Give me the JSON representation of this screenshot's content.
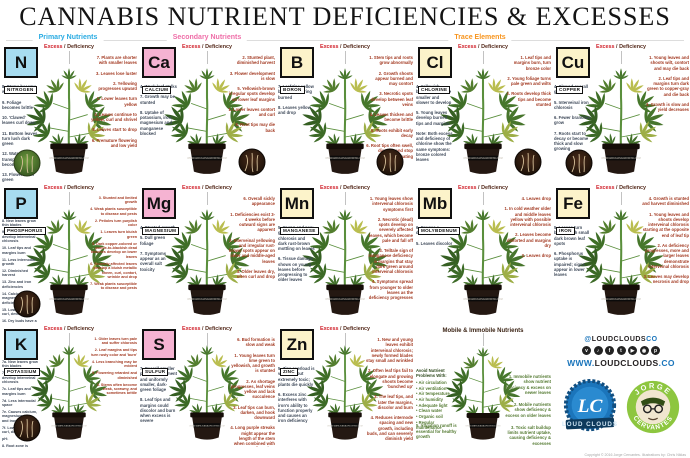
{
  "title": "CANNABIS NUTRIENT DEFICIENCIES & EXCESSES",
  "section_headers": [
    {
      "label": "Primary Nutrients",
      "color": "#29abe2"
    },
    {
      "label": "Secondary Nutrients",
      "color": "#ef6ea8"
    },
    {
      "label": "Trace Elements",
      "color": "#f7941d"
    }
  ],
  "labels": {
    "excess": "Excess",
    "separator": " / ",
    "deficiency": "Deficiency"
  },
  "group_colors": {
    "primary": "#a7dcf0",
    "secondary": "#f5b3d2",
    "trace": "#fcf3ca"
  },
  "pot_label": "WWW.MARIJUANAGROWING.COM",
  "cells": [
    {
      "symbol": "N",
      "name": "NITROGEN",
      "group": "primary",
      "inset": "bl-green",
      "left": [
        "8. Stems become weak",
        "9. Foliage becomes brittle",
        "10. 'Clawed' leaves curl down",
        "11. Bottom leaves turn lush dark green",
        "12. Water transport system becomes weak",
        "13. Flowers turn green"
      ],
      "right": [
        "7. Plants are shorter with smaller leaves",
        "3. Leaves lose luster",
        "2. Yellowing progresses upward",
        "1. Lower leaves turn yellow",
        "4. Leaves continue to yellow, curl and shrivel",
        "5. Leaves start to drop",
        "6. Premature flowering and low yield"
      ]
    },
    {
      "symbol": "Ca",
      "name": "CALCIUM",
      "group": "secondary",
      "inset": "br",
      "left": [
        "4. Weak leaf stalks",
        "7. Growth may be stunted",
        "8. Uptake of potassium, iron, magnesium and manganese blocked"
      ],
      "right": [
        "2. Stunted plant, diminished harvest",
        "3. Flower development is slow",
        "5. Yellowish-brown irregular spots develop on lower leaf margins",
        "1. Lower leaves contort and curl",
        "6. Root tips may die back"
      ]
    },
    {
      "symbol": "B",
      "name": "BORON",
      "group": "trace",
      "inset": "br",
      "left": [
        "7. Leaf tips yellow before appearing burned",
        "8. Leaves yellow and drop"
      ],
      "right": [
        "1. Stem tips and roots grow abnormally",
        "2. Growth shoots appear burned and may contort",
        "3. Necrotic spots develop between leaf veins",
        "4. Leaves thicken and become brittle",
        "5. Roots exhibit early decay",
        "6. Root tips often swell, discolor and stop elongating"
      ]
    },
    {
      "symbol": "Cl",
      "name": "CHLORINE",
      "group": "trace",
      "inset": "br",
      "left": [
        "4. Yellowish-bronze leaves are smaller and slower to develop",
        "5. Young leaves develop burned tips and margins",
        "Note: Both excess and deficiency of chlorine show the same symptoms: bronze colored leaves"
      ],
      "right": [
        "1. Leaf tips and margins burn, turn bronze color",
        "2. Young foliage turns pale green and wilts",
        "3. Roots develop thick tips and become stunted"
      ]
    },
    {
      "symbol": "Cu",
      "name": "COPPER",
      "group": "trace",
      "inset": "bl",
      "left": [
        "4. Slowed overall growth",
        "5. Interveinal iron chlorosis",
        "6. Fewer branches grow",
        "7. Roots start to decay or become thick and slow growing"
      ],
      "right": [
        "1. Young leaves and shoots wilt, contort and may die back",
        "2. Leaf tips and margins turn dark green to copper-gray and die back",
        "3. Growth is slow and yield decreases"
      ]
    },
    {
      "symbol": "P",
      "name": "PHOSPHORUS",
      "group": "primary",
      "inset": "bl",
      "left": [
        "8. New leaves grow thin blades",
        "9. Newer leaves develop interveinal chlorosis",
        "10. Leaf tips and margins burn",
        "11. Less internodal growth",
        "12. Diminished harvest",
        "13. Zinc and iron deficiencies",
        "14. Calcium and magnesium deficiencies appear",
        "15. Lower leaves curl, develop spots",
        "16. Dry buds have a 'chemical' taste",
        "17. Root tips die back"
      ],
      "right": [
        "3. Stunted and limited growth",
        "4. Weak plants susceptible to disease and pests",
        "2. Petioles turn purplish color",
        "1. Leaves turn bluish green",
        "5. Dark copper-colored or purple-to-blackish dead blotches develop on lower leaves",
        "6. Severely affected leaves develop a bluish metallic sheen, curl, contort, wrinkle and drop",
        "7. Weak plants susceptible to disease and pests"
      ]
    },
    {
      "symbol": "Mg",
      "name": "MAGNESIUM",
      "group": "secondary",
      "inset": null,
      "left": [
        "4. Stunted growth",
        "5. Dull green foliage",
        "7. Symptoms appear as an overall salt toxicity"
      ],
      "right": [
        "6. Overall sickly appearance",
        "1. Deficiencies exist 3-4 weeks before outward signs are apparent",
        "2. Interveinal yellowing and irregular rust-brown spots appear on older and middle-aged leaves",
        "3. Older leaves dry, often curl and drop"
      ]
    },
    {
      "symbol": "Mn",
      "name": "MANGANESE",
      "group": "trace",
      "inset": null,
      "left": [
        "5. Young and new growth develops chlorosis and dark rust-brown mottling on leaves",
        "6. Tissue damage shows on young leaves before progressing to older leaves"
      ],
      "right": [
        "1. Young leaves show interveinal chlorosis symptoms first",
        "2. Necrotic (dead) spots develop on severely affected leaves, which become pale and fall off",
        "3. Telltale sign of manganese deficiency is margins that stay dark green around interveinal chlorosis",
        "4. Symptoms spread from younger to older leaves as the deficiency progresses"
      ]
    },
    {
      "symbol": "Mb",
      "name": "MOLYBDENUM",
      "group": "trace",
      "inset": null,
      "left": [
        "6. Causes a deficiency of iron",
        "5. Leaves discolor"
      ],
      "right": [
        "4. Leaves drop",
        "1. In cold weather older and middle leaves yellow with possible interveinal chlorosis",
        "2. Leaves become distorted and margins dry",
        "3. Leaves drop"
      ]
    },
    {
      "symbol": "Fe",
      "name": "IRON",
      "group": "trace",
      "inset": null,
      "left": [
        "5. Leaves turn bronze with small dark brown leaf spots",
        "6. Phosphorus uptake is impaired; signs appear in lower leaves"
      ],
      "right": [
        "4. Growth is stunted and harvest diminished",
        "1. Young leaves and shoots develop interveinal chlorosis starting at the opposite end of leaf tip",
        "2. As deficiency progresses, more and larger leaves demonstrate interveinal chlorosis",
        "3. Leaves may develop necrosis and drop"
      ]
    },
    {
      "symbol": "K",
      "name": "POTASSIUM",
      "group": "primary",
      "inset": "bl",
      "left": [
        "7a. New leaves grow thin blades",
        "7b. Newer leaves develop interveinal chlorosis",
        "7c. Leaf tips and margins burn",
        "7d. Less internodal space",
        "7e. Causes calcium, magnesium, zinc and iron deficiencies",
        "7f. Lower leaves curl, develop spots",
        "pH↓",
        "8. Root zone is acidified",
        "9. Root tips die back"
      ],
      "right": [
        "1. Older leaves turn pale and suffer chlorosis",
        "2. Leaf margins and tips turn rusty color and 'burn'",
        "4. Less branching may be evident",
        "5. Flowering retarded and diminished",
        "3. Stems often become weak, scrawny, and sometimes brittle"
      ]
    },
    {
      "symbol": "S",
      "name": "SULFUR",
      "group": "secondary",
      "inset": null,
      "left": [
        "7. Overall smaller plant development and uniformly smaller, dark-green foliage",
        "8. Leaf tips and margins could discolor and burn when excess is severe"
      ],
      "right": [
        "6. Bud formation is slow and weak",
        "1. Young leaves turn lime green to yellowish, and growth is stunted",
        "2. As shortage progresses, leaf veins yellow and lack succulence",
        "3. Leaf tips can burn, darken, and hook downward",
        "4. Long purple streaks might appear the length of the stem when combined with an overall nutrient deficiency",
        "5. Stems often turn woody"
      ]
    },
    {
      "symbol": "Zn",
      "name": "ZINC",
      "group": "trace",
      "inset": null,
      "left": [
        "5. Zinc overload is very rare but extremely toxic; plants die quickly",
        "6. Excess zinc interferes with iron's ability to function properly and causes an iron deficiency"
      ],
      "right": [
        "1. New and young leaves exhibit interveinal chlorosis; newly formed blades stay small and wrinkled",
        "2. Often leaf tips fail to elongate and growing shoots become 'bunched up'",
        "3. The leaf tips, and later the margins, discolor and burn",
        "4. Reduces internode spacing and new growth, including buds, and can severely diminish yield"
      ]
    }
  ],
  "mobile": {
    "title": "Mobile & Immobile Nutrients",
    "avoid_title": "Avoid Nutrient Problems With:",
    "avoid_items": [
      "Air circulation",
      "Air ventilation",
      "Air temperature",
      "Air humidity",
      "Adequate light",
      "Clean water",
      "Organic soil",
      "Regular maintenance"
    ],
    "right": [
      "1. Immobile nutrients show nutrient deficiency & excess on newer leaves",
      "2. Mobile nutrients show deficiency & excess on older leaves",
      "3. Toxic salt buildup limits nutrient uptake, causing deficiency & excesses",
      "4. Overwatering is common. Causes nutrient deficiencies & excesses. Drowns and rots roots"
    ],
    "bottom": "5. Irrigation runoff is essential for healthy growth"
  },
  "branding": {
    "handle_prefix": "@",
    "handle_mid": "LOUDCLOUDS",
    "handle_suffix": "CO",
    "social_glyphs": [
      "v",
      "♪",
      "f",
      "t",
      "▶",
      "◉",
      "p"
    ],
    "social_names": [
      "vimeo",
      "soundcloud",
      "facebook",
      "twitter",
      "youtube",
      "instagram",
      "pinterest"
    ],
    "url_prefix": "WWW.",
    "url_mid": "LOUDCLOUDS",
    "url_suffix": ".CO",
    "lc_initials": "LC",
    "lc_banner": "LOUD CLOUDS",
    "jorge_top": "JORGE",
    "jorge_bottom": "CERVANTES",
    "blue": "#1b75bb",
    "green": "#8dc63f"
  },
  "footer": "Copyright © 2016 Jorge Cervantes. Illustrations by: Chris Niklas"
}
